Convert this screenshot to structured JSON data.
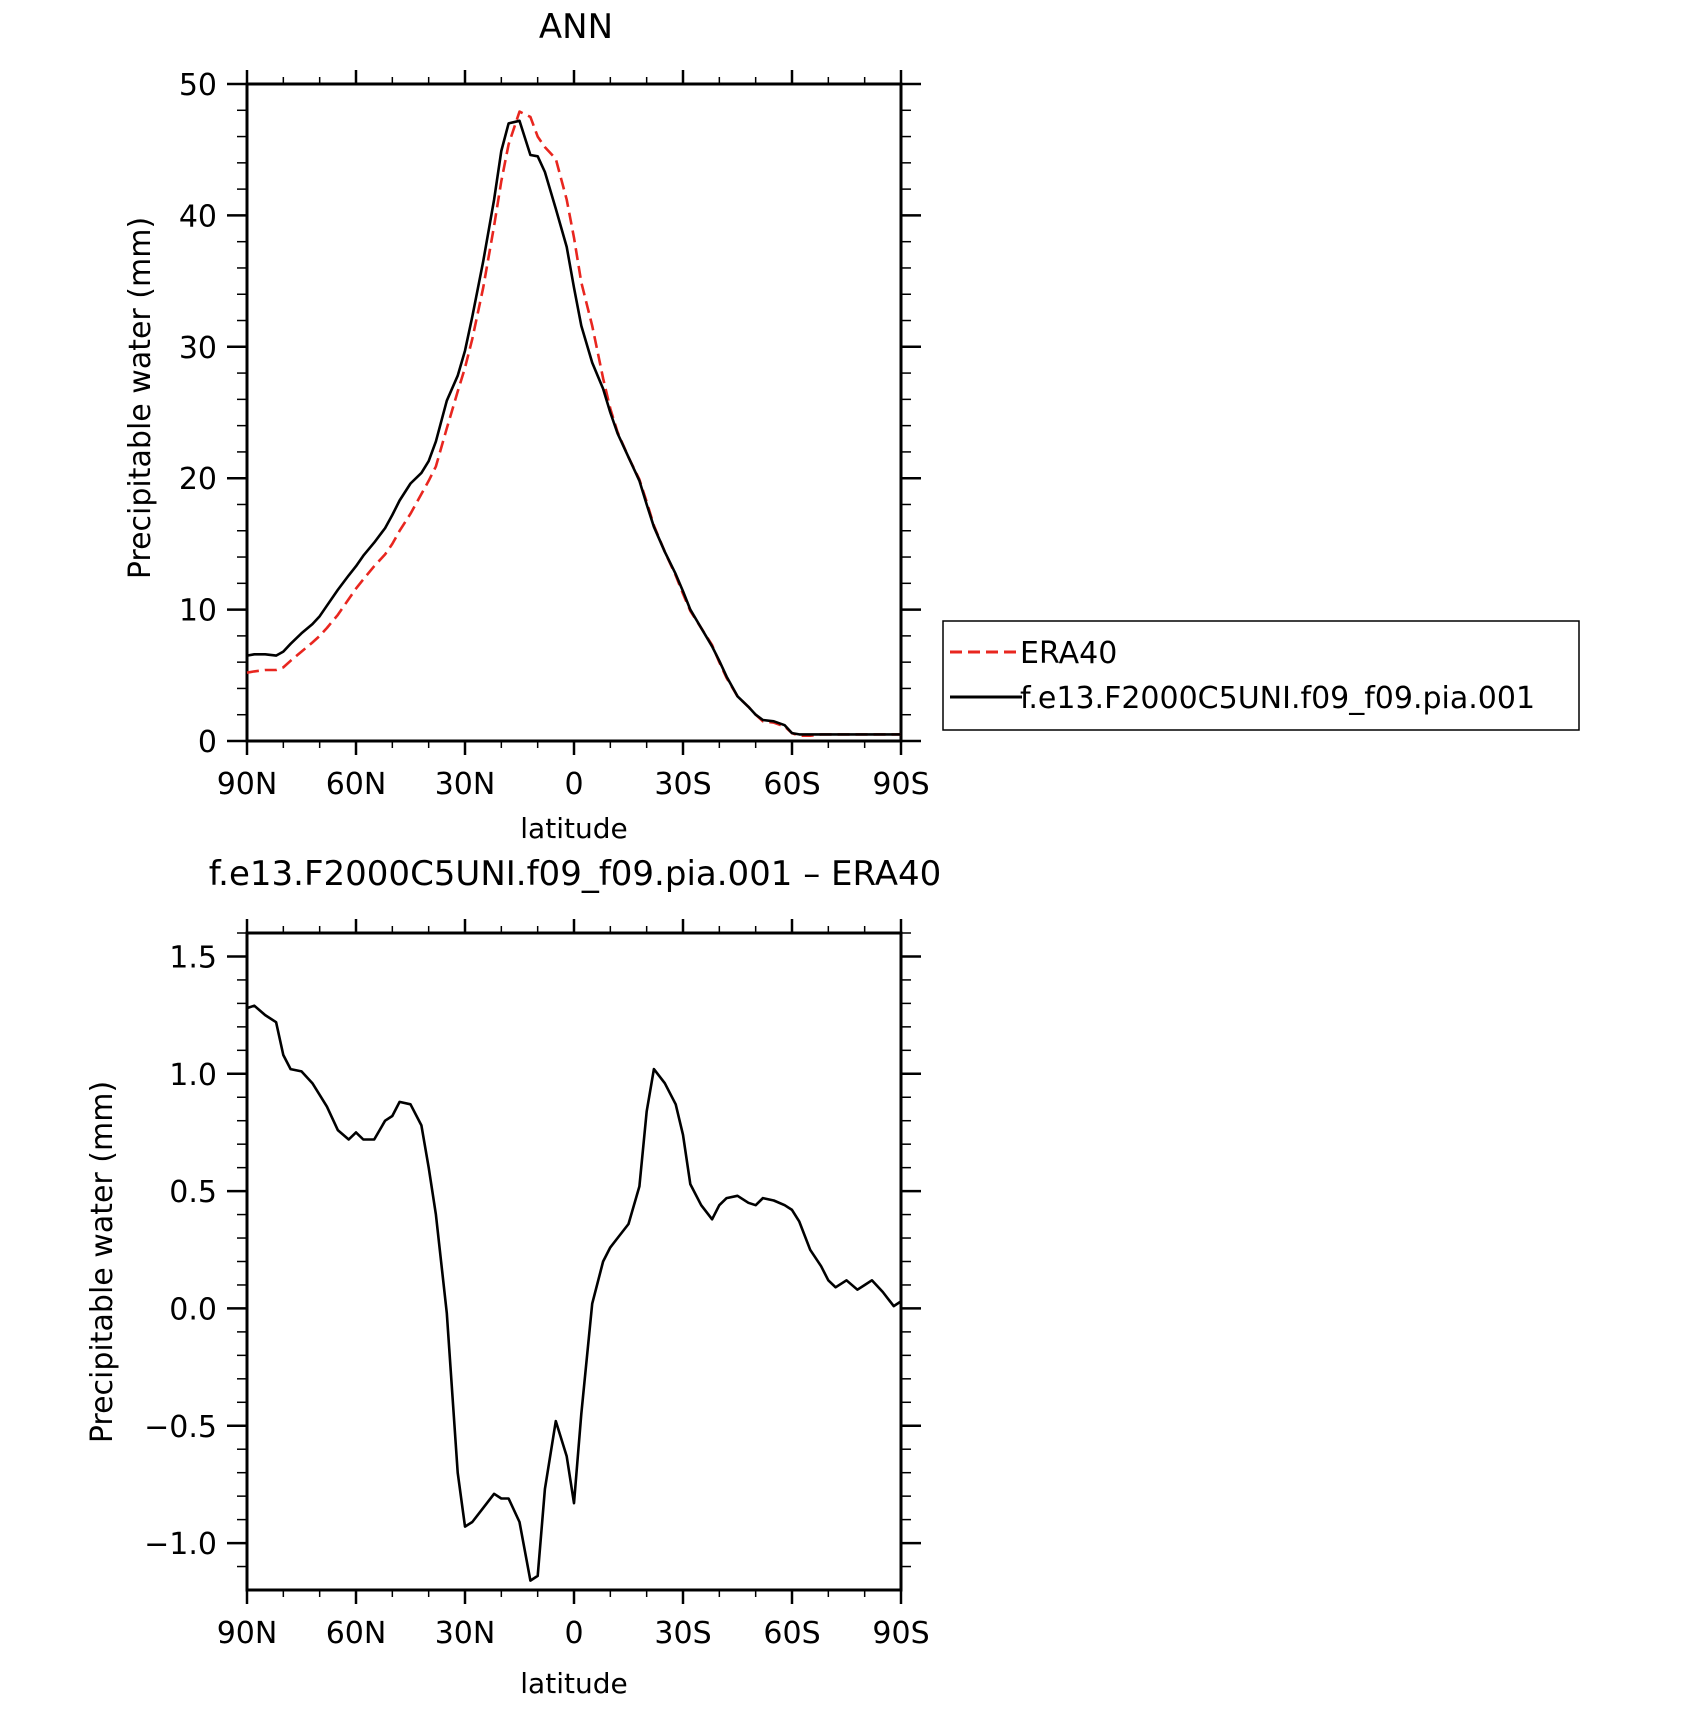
{
  "chart_data": [
    {
      "type": "line",
      "title": "ANN",
      "xlabel": "latitude",
      "ylabel": "Precipitable water (mm)",
      "xlim": [
        90,
        -90
      ],
      "ylim": [
        0,
        50
      ],
      "x_tick_values": [
        90,
        60,
        30,
        0,
        -30,
        -60,
        -90
      ],
      "x_tick_labels": [
        "90N",
        "60N",
        "30N",
        "0",
        "30S",
        "60S",
        "90S"
      ],
      "y_tick_values": [
        0,
        10,
        20,
        30,
        40,
        50
      ],
      "y_tick_labels": [
        "0",
        "10",
        "20",
        "30",
        "40",
        "50"
      ],
      "grid": false,
      "legend_position": "right",
      "x": [
        90,
        88,
        85,
        82,
        80,
        78,
        75,
        72,
        70,
        68,
        65,
        62,
        60,
        58,
        55,
        52,
        50,
        48,
        45,
        42,
        40,
        38,
        35,
        32,
        30,
        28,
        25,
        22,
        20,
        18,
        15,
        12,
        10,
        8,
        5,
        2,
        0,
        -2,
        -5,
        -8,
        -10,
        -12,
        -15,
        -18,
        -20,
        -22,
        -25,
        -28,
        -30,
        -32,
        -35,
        -38,
        -40,
        -42,
        -45,
        -48,
        -50,
        -52,
        -55,
        -58,
        -60,
        -62,
        -65,
        -68,
        -70,
        -72,
        -75,
        -78,
        -80,
        -82,
        -85,
        -88,
        -90
      ],
      "series": [
        {
          "name": "ERA40",
          "color": "#e8261f",
          "dash": "dashed",
          "values": [
            5.2,
            5.3,
            5.4,
            5.4,
            5.6,
            6.1,
            6.8,
            7.5,
            8.0,
            8.6,
            9.6,
            10.8,
            11.6,
            12.3,
            13.3,
            14.2,
            15.0,
            16.0,
            17.3,
            18.8,
            19.8,
            20.9,
            23.8,
            26.6,
            28.4,
            30.6,
            34.5,
            39.2,
            42.6,
            45.4,
            47.9,
            47.5,
            46.0,
            45.2,
            44.3,
            41.2,
            38.3,
            34.9,
            31.6,
            27.6,
            25.3,
            23.5,
            21.6,
            19.9,
            18.2,
            16.4,
            14.4,
            12.6,
            11.2,
            9.9,
            8.6,
            7.3,
            6.0,
            4.8,
            3.4,
            2.6,
            2.0,
            1.5,
            1.4,
            1.1,
            0.6,
            0.4,
            0.4,
            0.5,
            0.5,
            0.5,
            0.5,
            0.5,
            0.5,
            0.5,
            0.5,
            0.5,
            0.5
          ]
        },
        {
          "name": "f.e13.F2000C5UNI.f09_f09.pia.001",
          "color": "#000000",
          "dash": "solid",
          "values": [
            6.5,
            6.6,
            6.6,
            6.5,
            6.8,
            7.4,
            8.2,
            8.9,
            9.5,
            10.3,
            11.5,
            12.6,
            13.3,
            14.1,
            15.1,
            16.2,
            17.2,
            18.3,
            19.6,
            20.4,
            21.3,
            22.8,
            25.9,
            27.8,
            29.7,
            32.3,
            36.5,
            41.2,
            44.9,
            47.0,
            47.2,
            44.6,
            44.5,
            43.3,
            40.5,
            37.6,
            34.5,
            31.6,
            28.8,
            26.8,
            25.0,
            23.4,
            21.6,
            19.8,
            18.0,
            16.3,
            14.4,
            12.7,
            11.4,
            10.0,
            8.6,
            7.2,
            6.1,
            4.9,
            3.4,
            2.6,
            2.0,
            1.6,
            1.5,
            1.2,
            0.6,
            0.5,
            0.5,
            0.5,
            0.5,
            0.5,
            0.5,
            0.5,
            0.5,
            0.5,
            0.5,
            0.5,
            0.5
          ]
        }
      ]
    },
    {
      "type": "line",
      "title": "f.e13.F2000C5UNI.f09_f09.pia.001 – ERA40",
      "xlabel": "latitude",
      "ylabel": "Precipitable water (mm)",
      "xlim": [
        90,
        -90
      ],
      "ylim": [
        -1.2,
        1.6
      ],
      "x_tick_values": [
        90,
        60,
        30,
        0,
        -30,
        -60,
        -90
      ],
      "x_tick_labels": [
        "90N",
        "60N",
        "30N",
        "0",
        "30S",
        "60S",
        "90S"
      ],
      "y_tick_values": [
        1.5,
        1.0,
        0.5,
        0.0,
        -0.5,
        -1.0
      ],
      "y_tick_labels": [
        "1.5",
        "1.0",
        "0.5",
        "0.0",
        "−0.5",
        "−1.0"
      ],
      "grid": false,
      "x": [
        90,
        88,
        85,
        82,
        80,
        78,
        75,
        72,
        70,
        68,
        65,
        62,
        60,
        58,
        55,
        52,
        50,
        48,
        45,
        42,
        40,
        38,
        35,
        32,
        30,
        28,
        25,
        22,
        20,
        18,
        15,
        12,
        10,
        8,
        5,
        2,
        0,
        -2,
        -5,
        -8,
        -10,
        -12,
        -15,
        -18,
        -20,
        -22,
        -25,
        -28,
        -30,
        -32,
        -35,
        -38,
        -40,
        -42,
        -45,
        -48,
        -50,
        -52,
        -55,
        -58,
        -60,
        -62,
        -65,
        -68,
        -70,
        -72,
        -75,
        -78,
        -80,
        -82,
        -85,
        -88,
        -90
      ],
      "series": [
        {
          "name": "",
          "color": "#000000",
          "dash": "solid",
          "values": [
            1.28,
            1.29,
            1.25,
            1.22,
            1.08,
            1.02,
            1.01,
            0.96,
            0.91,
            0.86,
            0.76,
            0.72,
            0.75,
            0.72,
            0.72,
            0.8,
            0.82,
            0.88,
            0.87,
            0.78,
            0.6,
            0.4,
            -0.02,
            -0.7,
            -0.93,
            -0.91,
            -0.85,
            -0.79,
            -0.81,
            -0.81,
            -0.91,
            -1.16,
            -1.14,
            -0.77,
            -0.48,
            -0.63,
            -0.83,
            -0.45,
            0.02,
            0.2,
            0.26,
            0.3,
            0.36,
            0.52,
            0.84,
            1.02,
            0.96,
            0.87,
            0.74,
            0.53,
            0.44,
            0.38,
            0.44,
            0.47,
            0.48,
            0.45,
            0.44,
            0.47,
            0.46,
            0.44,
            0.42,
            0.37,
            0.25,
            0.18,
            0.12,
            0.09,
            0.12,
            0.08,
            0.1,
            0.12,
            0.07,
            0.01,
            0.03
          ]
        }
      ]
    }
  ]
}
